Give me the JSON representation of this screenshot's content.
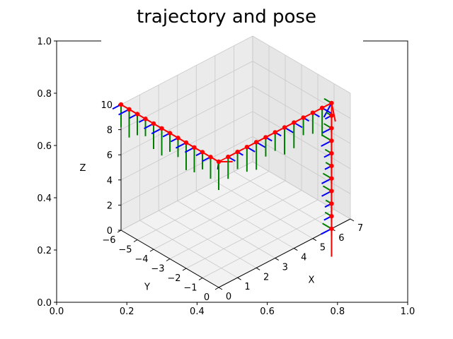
{
  "chart_data": [
    {
      "type": "line",
      "title": "trajectory and pose",
      "xlabel": "",
      "ylabel": "",
      "xlim": [
        0,
        1
      ],
      "ylim": [
        0,
        1
      ],
      "x_ticks": [
        "0.0",
        "0.2",
        "0.4",
        "0.6",
        "0.8",
        "1.0"
      ],
      "y_ticks": [
        "0.0",
        "0.2",
        "0.4",
        "0.6",
        "0.8",
        "1.0"
      ],
      "grid": false
    },
    {
      "type": "scatter",
      "projection": "3d",
      "xlabel": "X",
      "ylabel": "Y",
      "zlabel": "Z",
      "xlim": [
        0,
        7
      ],
      "ylim": [
        -6,
        0
      ],
      "zlim": [
        0,
        10
      ],
      "x_ticks": [
        "0",
        "1",
        "2",
        "3",
        "4",
        "5",
        "6",
        "7"
      ],
      "y_ticks": [
        "−6",
        "−5",
        "−4",
        "−3",
        "−2",
        "−1",
        "0"
      ],
      "z_ticks": [
        "0",
        "2",
        "4",
        "6",
        "8",
        "10"
      ],
      "grid": true,
      "trajectory_color": "#ff0000",
      "pose_axis_colors": {
        "x": "#ff0000",
        "y": "#008000",
        "z": "#0000ff"
      },
      "trajectory": [
        {
          "x": 0.0,
          "y": -6.0,
          "z": 10.0
        },
        {
          "x": 0.0,
          "y": -5.5,
          "z": 10.0
        },
        {
          "x": 0.0,
          "y": -5.0,
          "z": 10.0
        },
        {
          "x": 0.0,
          "y": -4.5,
          "z": 10.0
        },
        {
          "x": 0.0,
          "y": -4.0,
          "z": 10.0
        },
        {
          "x": 0.0,
          "y": -3.5,
          "z": 10.0
        },
        {
          "x": 0.0,
          "y": -3.0,
          "z": 10.0
        },
        {
          "x": 0.0,
          "y": -2.5,
          "z": 10.0
        },
        {
          "x": 0.0,
          "y": -2.0,
          "z": 10.0
        },
        {
          "x": 0.0,
          "y": -1.5,
          "z": 10.0
        },
        {
          "x": 0.0,
          "y": -1.0,
          "z": 10.0
        },
        {
          "x": 0.0,
          "y": -0.5,
          "z": 10.0
        },
        {
          "x": 0.0,
          "y": 0.0,
          "z": 10.0
        },
        {
          "x": 0.5,
          "y": 0.0,
          "z": 10.0
        },
        {
          "x": 1.0,
          "y": 0.0,
          "z": 10.0
        },
        {
          "x": 1.5,
          "y": 0.0,
          "z": 10.0
        },
        {
          "x": 2.0,
          "y": 0.0,
          "z": 10.0
        },
        {
          "x": 2.5,
          "y": 0.0,
          "z": 10.0
        },
        {
          "x": 3.0,
          "y": 0.0,
          "z": 10.0
        },
        {
          "x": 3.5,
          "y": 0.0,
          "z": 10.0
        },
        {
          "x": 4.0,
          "y": 0.0,
          "z": 10.0
        },
        {
          "x": 4.5,
          "y": 0.0,
          "z": 10.0
        },
        {
          "x": 5.0,
          "y": 0.0,
          "z": 10.0
        },
        {
          "x": 5.5,
          "y": 0.0,
          "z": 10.0
        },
        {
          "x": 6.0,
          "y": 0.0,
          "z": 10.0
        },
        {
          "x": 6.0,
          "y": 0.0,
          "z": 9.0
        },
        {
          "x": 6.0,
          "y": 0.0,
          "z": 8.0
        },
        {
          "x": 6.0,
          "y": 0.0,
          "z": 7.0
        },
        {
          "x": 6.0,
          "y": 0.0,
          "z": 6.0
        },
        {
          "x": 6.0,
          "y": 0.0,
          "z": 5.0
        },
        {
          "x": 6.0,
          "y": 0.0,
          "z": 4.0
        },
        {
          "x": 6.0,
          "y": 0.0,
          "z": 3.0
        },
        {
          "x": 6.0,
          "y": 0.0,
          "z": 2.0
        },
        {
          "x": 6.0,
          "y": 0.0,
          "z": 1.0
        },
        {
          "x": 6.0,
          "y": 0.0,
          "z": 0.0
        }
      ]
    }
  ]
}
